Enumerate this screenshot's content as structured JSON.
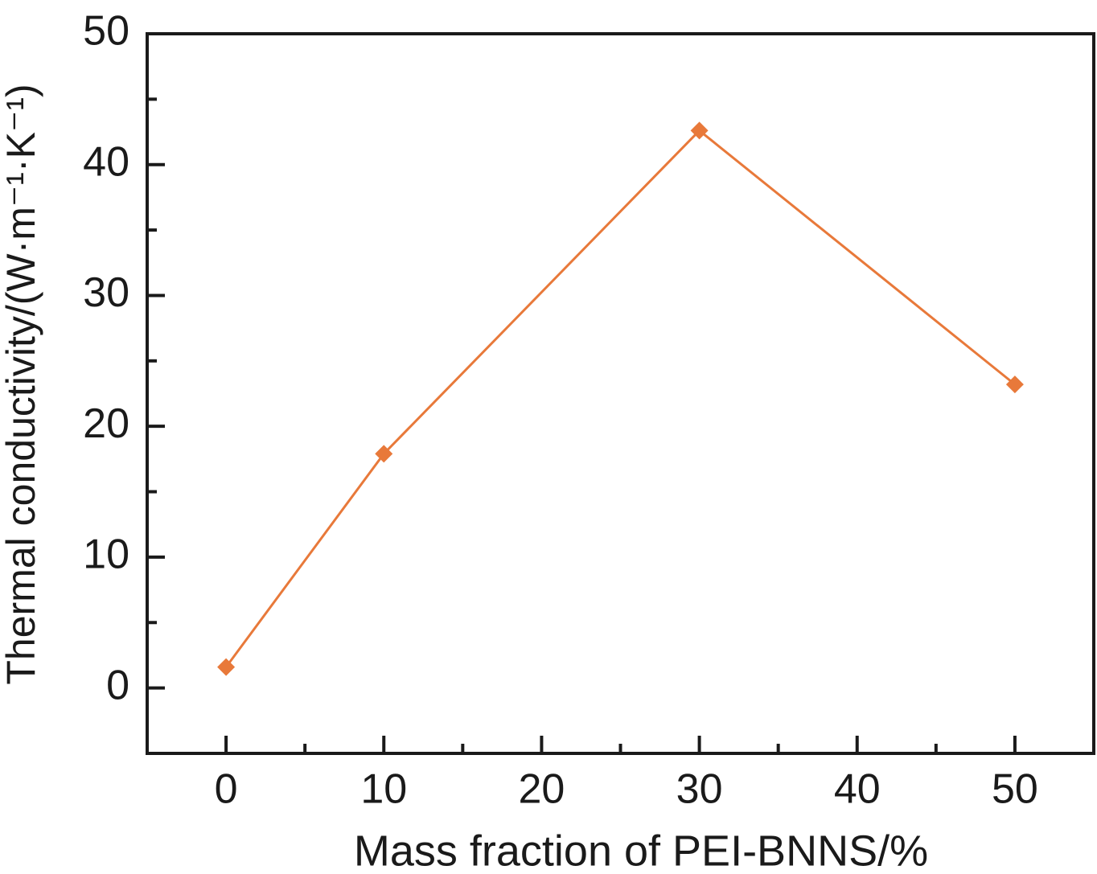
{
  "chart_data": {
    "type": "line",
    "xlabel": "Mass fraction of PEI-BNNS/%",
    "ylabel": "Thermal conductivity/(W·m⁻¹·K⁻¹)",
    "x": [
      0,
      10,
      30,
      50
    ],
    "series": [
      {
        "color": "#e8793a",
        "marker": "diamond",
        "values": [
          1.6,
          17.9,
          42.6,
          23.2
        ]
      }
    ],
    "xlim": [
      -5,
      55
    ],
    "xticks": [
      0,
      10,
      20,
      30,
      40,
      50
    ],
    "xminorticks": [
      5,
      15,
      25,
      35,
      45
    ],
    "ylim": [
      -5,
      50
    ],
    "yticks": [
      0,
      10,
      20,
      30,
      40,
      50
    ],
    "yminorticks": [
      5,
      15,
      25,
      35,
      45
    ]
  }
}
